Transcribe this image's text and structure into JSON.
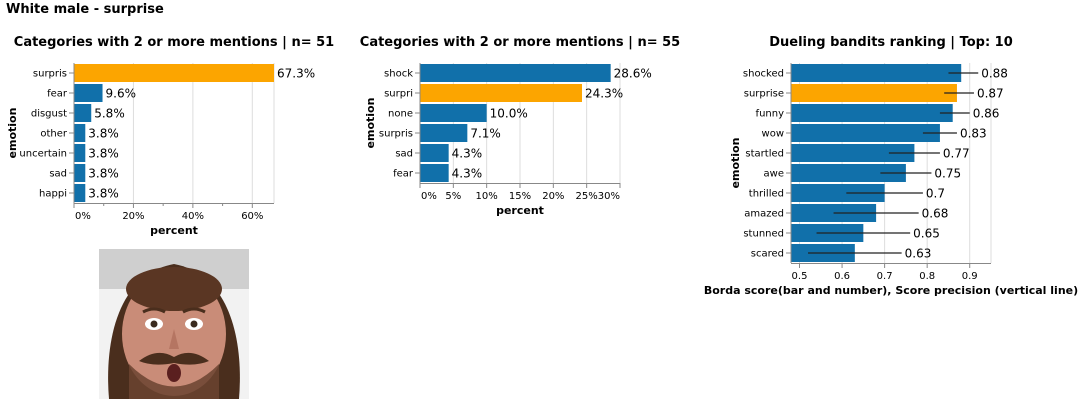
{
  "page": {
    "title": "White male - surprise"
  },
  "colors": {
    "bar": "#1170aa",
    "highlight": "#fca500",
    "axis": "#888888",
    "grid": "#dddddd",
    "precision_line": "#222222"
  },
  "photo": {
    "description_icon": "face-photo"
  },
  "chart_data": [
    {
      "type": "bar",
      "orientation": "horizontal",
      "title": "Categories with 2 or more mentions | n= 51",
      "xlabel": "percent",
      "ylabel": "emotion",
      "categories": [
        "surpris",
        "fear",
        "disgust",
        "other",
        "uncertain",
        "sad",
        "happi"
      ],
      "values": [
        67.3,
        9.6,
        5.8,
        3.8,
        3.8,
        3.8,
        3.8
      ],
      "labels": [
        "67.3%",
        "9.6%",
        "5.8%",
        "3.8%",
        "3.8%",
        "3.8%",
        "3.8%"
      ],
      "highlight": [
        "surpris"
      ],
      "xlim": [
        0,
        67.3
      ],
      "xticks": [
        0,
        20,
        40,
        60
      ],
      "xtick_labels": [
        "0%",
        "20%",
        "40%",
        "60%"
      ],
      "grid": true
    },
    {
      "type": "bar",
      "orientation": "horizontal",
      "title": "Categories with 2 or more mentions | n= 55",
      "xlabel": "percent",
      "ylabel": "emotion",
      "categories": [
        "shock",
        "surpri",
        "none",
        "surpris",
        "sad",
        "fear"
      ],
      "values": [
        28.6,
        24.3,
        10.0,
        7.1,
        4.3,
        4.3
      ],
      "labels": [
        "28.6%",
        "24.3%",
        "10.0%",
        "7.1%",
        "4.3%",
        "4.3%"
      ],
      "highlight": [
        "surpri"
      ],
      "xlim": [
        0,
        30
      ],
      "xticks": [
        0,
        5,
        10,
        15,
        20,
        25,
        30
      ],
      "xtick_labels": [
        "0%",
        "5%",
        "10%",
        "15%",
        "20%",
        "25%",
        "30%"
      ],
      "grid": true
    },
    {
      "type": "bar",
      "orientation": "horizontal",
      "title": "Dueling bandits ranking | Top: 10",
      "xlabel": "Borda score(bar and number), Score precision (vertical line)",
      "ylabel": "emotion",
      "categories": [
        "shocked",
        "surprise",
        "funny",
        "wow",
        "startled",
        "awe",
        "thrilled",
        "amazed",
        "stunned",
        "scared"
      ],
      "values": [
        0.88,
        0.87,
        0.86,
        0.83,
        0.77,
        0.75,
        0.7,
        0.68,
        0.65,
        0.63
      ],
      "labels": [
        "0.88",
        "0.87",
        "0.86",
        "0.83",
        "0.77",
        "0.75",
        "0.7",
        "0.68",
        "0.65",
        "0.63"
      ],
      "precision_low": [
        0.85,
        0.84,
        0.83,
        0.79,
        0.71,
        0.69,
        0.61,
        0.58,
        0.54,
        0.52
      ],
      "precision_high": [
        0.92,
        0.91,
        0.9,
        0.87,
        0.83,
        0.81,
        0.79,
        0.78,
        0.76,
        0.74
      ],
      "highlight": [
        "surprise"
      ],
      "xlim": [
        0.48,
        0.95
      ],
      "xticks": [
        0.5,
        0.6,
        0.7,
        0.8,
        0.9
      ],
      "xtick_labels": [
        "0.5",
        "0.6",
        "0.7",
        "0.8",
        "0.9"
      ],
      "grid": true
    }
  ]
}
